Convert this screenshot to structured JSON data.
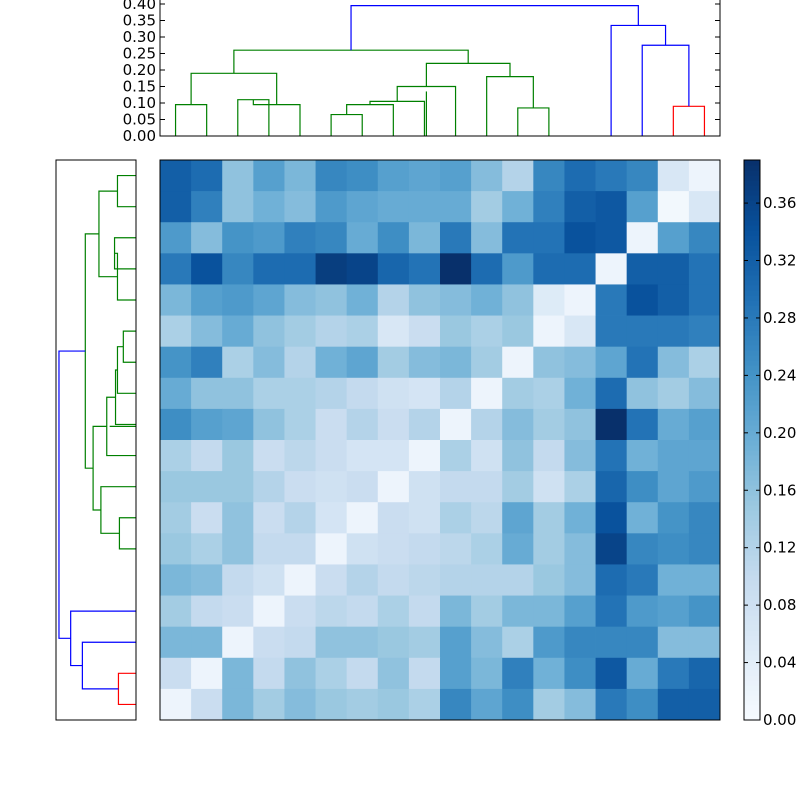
{
  "chart_data": [
    {
      "type": "heatmap",
      "panel": "main",
      "rows": 18,
      "cols": 18,
      "colormap": "Blues",
      "vmin": 0.0,
      "vmax": 0.39,
      "values": [
        [
          0.32,
          0.3,
          0.16,
          0.22,
          0.18,
          0.26,
          0.25,
          0.22,
          0.21,
          0.22,
          0.17,
          0.12,
          0.26,
          0.3,
          0.28,
          0.26,
          0.06,
          0.02
        ],
        [
          0.32,
          0.27,
          0.16,
          0.19,
          0.17,
          0.23,
          0.21,
          0.2,
          0.2,
          0.2,
          0.14,
          0.19,
          0.27,
          0.32,
          0.33,
          0.22,
          0.01,
          0.06
        ],
        [
          0.23,
          0.17,
          0.24,
          0.23,
          0.27,
          0.26,
          0.2,
          0.25,
          0.18,
          0.28,
          0.17,
          0.29,
          0.29,
          0.34,
          0.33,
          0.02,
          0.22,
          0.26
        ],
        [
          0.28,
          0.34,
          0.26,
          0.3,
          0.3,
          0.37,
          0.36,
          0.31,
          0.29,
          0.39,
          0.3,
          0.23,
          0.3,
          0.3,
          0.02,
          0.32,
          0.32,
          0.29
        ],
        [
          0.18,
          0.22,
          0.23,
          0.21,
          0.17,
          0.16,
          0.19,
          0.12,
          0.16,
          0.17,
          0.19,
          0.16,
          0.05,
          0.02,
          0.28,
          0.34,
          0.32,
          0.29
        ],
        [
          0.13,
          0.17,
          0.2,
          0.16,
          0.14,
          0.12,
          0.13,
          0.06,
          0.09,
          0.15,
          0.13,
          0.15,
          0.02,
          0.06,
          0.28,
          0.28,
          0.28,
          0.27
        ],
        [
          0.24,
          0.27,
          0.13,
          0.17,
          0.12,
          0.19,
          0.21,
          0.14,
          0.17,
          0.18,
          0.14,
          0.02,
          0.16,
          0.17,
          0.21,
          0.29,
          0.17,
          0.13
        ],
        [
          0.2,
          0.16,
          0.16,
          0.13,
          0.13,
          0.12,
          0.1,
          0.08,
          0.07,
          0.12,
          0.02,
          0.14,
          0.13,
          0.19,
          0.3,
          0.16,
          0.14,
          0.17
        ],
        [
          0.25,
          0.22,
          0.21,
          0.16,
          0.13,
          0.09,
          0.12,
          0.09,
          0.12,
          0.02,
          0.12,
          0.17,
          0.14,
          0.16,
          0.39,
          0.29,
          0.2,
          0.22
        ],
        [
          0.13,
          0.1,
          0.15,
          0.09,
          0.11,
          0.09,
          0.07,
          0.07,
          0.02,
          0.13,
          0.08,
          0.16,
          0.1,
          0.17,
          0.29,
          0.19,
          0.21,
          0.21
        ],
        [
          0.15,
          0.15,
          0.15,
          0.12,
          0.09,
          0.08,
          0.09,
          0.02,
          0.08,
          0.1,
          0.1,
          0.14,
          0.08,
          0.13,
          0.31,
          0.25,
          0.21,
          0.23
        ],
        [
          0.14,
          0.09,
          0.16,
          0.09,
          0.12,
          0.07,
          0.02,
          0.09,
          0.08,
          0.13,
          0.11,
          0.21,
          0.14,
          0.19,
          0.34,
          0.19,
          0.24,
          0.26
        ],
        [
          0.15,
          0.13,
          0.16,
          0.1,
          0.1,
          0.02,
          0.08,
          0.09,
          0.1,
          0.11,
          0.13,
          0.2,
          0.14,
          0.17,
          0.36,
          0.26,
          0.25,
          0.26
        ],
        [
          0.18,
          0.17,
          0.1,
          0.08,
          0.02,
          0.09,
          0.12,
          0.1,
          0.11,
          0.12,
          0.12,
          0.12,
          0.15,
          0.17,
          0.3,
          0.28,
          0.19,
          0.19
        ],
        [
          0.14,
          0.1,
          0.09,
          0.02,
          0.09,
          0.11,
          0.1,
          0.13,
          0.1,
          0.18,
          0.14,
          0.18,
          0.18,
          0.22,
          0.29,
          0.23,
          0.22,
          0.24
        ],
        [
          0.18,
          0.18,
          0.02,
          0.09,
          0.1,
          0.16,
          0.16,
          0.15,
          0.14,
          0.22,
          0.17,
          0.13,
          0.23,
          0.26,
          0.26,
          0.26,
          0.17,
          0.17
        ],
        [
          0.09,
          0.02,
          0.18,
          0.1,
          0.16,
          0.13,
          0.1,
          0.16,
          0.1,
          0.22,
          0.18,
          0.27,
          0.19,
          0.25,
          0.33,
          0.2,
          0.28,
          0.31
        ],
        [
          0.02,
          0.09,
          0.18,
          0.14,
          0.17,
          0.15,
          0.14,
          0.15,
          0.13,
          0.26,
          0.21,
          0.25,
          0.14,
          0.17,
          0.28,
          0.25,
          0.32,
          0.32
        ]
      ]
    },
    {
      "type": "dendrogram",
      "panel": "top",
      "orientation": "top",
      "ylim": [
        0,
        0.4
      ],
      "yticks": [
        "0.00",
        "0.05",
        "0.10",
        "0.15",
        "0.20",
        "0.25",
        "0.30",
        "0.35",
        "0.40"
      ],
      "leaves": 18,
      "links": [
        {
          "left": 0.5,
          "right": 1.5,
          "h": 0.095,
          "color": "#008000"
        },
        {
          "left": 2.5,
          "right": 3.5,
          "h": 0.11,
          "color": "#008000"
        },
        {
          "left": 3.0,
          "right": 4.5,
          "h": 0.095,
          "color": "#008000"
        },
        {
          "left": 1.0,
          "right": 3.75,
          "h": 0.19,
          "color": "#008000"
        },
        {
          "left": 5.5,
          "right": 6.5,
          "h": 0.065,
          "color": "#008000"
        },
        {
          "left": 6.0,
          "right": 7.5,
          "h": 0.095,
          "color": "#008000"
        },
        {
          "left": 6.75,
          "right": 8.5,
          "h": 0.105,
          "color": "#008000"
        },
        {
          "left": 7.625,
          "right": 9.5,
          "h": 0.15,
          "color": "#008000"
        },
        {
          "left": 11.5,
          "right": 12.5,
          "h": 0.085,
          "color": "#008000"
        },
        {
          "left": 10.5,
          "right": 12.0,
          "h": 0.18,
          "color": "#008000"
        },
        {
          "left": 8.5625,
          "right": 11.25,
          "h": 0.22,
          "color": "#008000"
        },
        {
          "left": 2.375,
          "right": 9.90625,
          "h": 0.26,
          "color": "#008000"
        },
        {
          "left": 16.5,
          "right": 17.5,
          "h": 0.09,
          "color": "#ff0000"
        },
        {
          "left": 15.5,
          "right": 17.0,
          "h": 0.275,
          "color": "#0000ff"
        },
        {
          "left": 14.5,
          "right": 16.25,
          "h": 0.335,
          "color": "#0000ff"
        },
        {
          "left": 6.140625,
          "right": 15.375,
          "h": 0.395,
          "color": "#0000ff"
        },
        {
          "left": 8.5625,
          "right": 8.5625,
          "h": 0.135,
          "color": "#008000"
        }
      ]
    },
    {
      "type": "dendrogram",
      "panel": "left",
      "orientation": "left",
      "leaves": 18,
      "links": [
        {
          "a": 0.5,
          "b": 1.5,
          "h": 0.095,
          "color": "#008000"
        },
        {
          "a": 2.5,
          "b": 3.5,
          "h": 0.11,
          "color": "#008000"
        },
        {
          "a": 3.0,
          "b": 4.5,
          "h": 0.095,
          "color": "#008000"
        },
        {
          "a": 1.0,
          "b": 3.75,
          "h": 0.19,
          "color": "#008000"
        },
        {
          "a": 5.5,
          "b": 6.5,
          "h": 0.065,
          "color": "#008000"
        },
        {
          "a": 6.0,
          "b": 7.5,
          "h": 0.095,
          "color": "#008000"
        },
        {
          "a": 6.75,
          "b": 8.5,
          "h": 0.105,
          "color": "#008000"
        },
        {
          "a": 7.625,
          "b": 9.5,
          "h": 0.15,
          "color": "#008000"
        },
        {
          "a": 11.5,
          "b": 12.5,
          "h": 0.085,
          "color": "#008000"
        },
        {
          "a": 10.5,
          "b": 12.0,
          "h": 0.18,
          "color": "#008000"
        },
        {
          "a": 8.5625,
          "b": 11.25,
          "h": 0.22,
          "color": "#008000"
        },
        {
          "a": 2.375,
          "b": 9.90625,
          "h": 0.26,
          "color": "#008000"
        },
        {
          "a": 16.5,
          "b": 17.5,
          "h": 0.09,
          "color": "#ff0000"
        },
        {
          "a": 15.5,
          "b": 17.0,
          "h": 0.275,
          "color": "#0000ff"
        },
        {
          "a": 14.5,
          "b": 16.25,
          "h": 0.335,
          "color": "#0000ff"
        },
        {
          "a": 6.140625,
          "b": 15.375,
          "h": 0.395,
          "color": "#0000ff"
        }
      ]
    },
    {
      "type": "colorbar",
      "panel": "colorbar",
      "vmin": 0.0,
      "vmax": 0.39,
      "ticks": [
        0.0,
        0.04,
        0.08,
        0.12,
        0.16,
        0.2,
        0.24,
        0.28,
        0.32,
        0.36
      ],
      "tick_labels": [
        "0.00",
        "0.04",
        "0.08",
        "0.12",
        "0.16",
        "0.20",
        "0.24",
        "0.28",
        "0.32",
        "0.36"
      ]
    }
  ]
}
